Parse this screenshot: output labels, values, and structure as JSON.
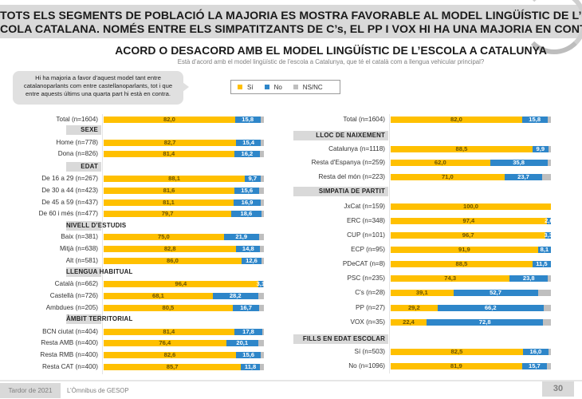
{
  "headline": {
    "line1": "TOTS ELS SEGMENTS DE POBLACIÓ LA MAJORIA ES MOSTRA FAVORABLE AL MODEL LINGÜÍSTIC DE L’ES-",
    "line2": "COLA CATALANA. NOMÉS ENTRE ELS SIMPATITZANTS DE C’s, EL PP I VOX HI HA UNA MAJORIA EN CONTRA"
  },
  "callout": {
    "line1": "Hi ha majoria a favor d’aquest model tant entre",
    "line2": "catalanoparlants com entre castellanoparlants, tot i que",
    "line3": "entre aquests últims una quarta part hi està en contra."
  },
  "footer": {
    "date": "Tardor de 2021",
    "source": "L’Òmnibus de GESOP",
    "page": "30"
  },
  "colors": {
    "yes": "#FFC000",
    "no": "#2E86C9",
    "nsnc": "#BFBFBF"
  },
  "chart_data": {
    "type": "bar",
    "stacked": true,
    "orientation": "horizontal",
    "title": "ACORD O DESACORD AMB EL MODEL LINGÜÍSTIC DE L’ESCOLA A CATALUNYA",
    "subtitle": "Està d’acord amb el model lingüístic de l’escola a Catalunya, que té el català com a llengua vehicular principal?",
    "xlim": [
      0,
      100
    ],
    "unit": "%",
    "legend": {
      "position": "top-right",
      "entries": [
        {
          "key": "yes",
          "label": "Sí"
        },
        {
          "key": "no",
          "label": "No"
        },
        {
          "key": "nsnc",
          "label": "NS/NC"
        }
      ]
    },
    "panels": [
      {
        "name": "left",
        "rows": [
          {
            "type": "row",
            "label": "Total (n=1604)",
            "yes": 82.0,
            "no": 15.8,
            "yes_label": "82,0",
            "no_label": "15,8"
          },
          {
            "type": "section",
            "label": "SEXE"
          },
          {
            "type": "row",
            "label": "Home (n=778)",
            "yes": 82.7,
            "no": 15.4,
            "yes_label": "82,7",
            "no_label": "15,4"
          },
          {
            "type": "row",
            "label": "Dona (n=826)",
            "yes": 81.4,
            "no": 16.2,
            "yes_label": "81,4",
            "no_label": "16,2"
          },
          {
            "type": "section",
            "label": "EDAT"
          },
          {
            "type": "row",
            "label": "De 16 a 29 (n=267)",
            "yes": 88.1,
            "no": 9.7,
            "yes_label": "88,1",
            "no_label": "9,7"
          },
          {
            "type": "row",
            "label": "De 30 a 44 (n=423)",
            "yes": 81.6,
            "no": 15.6,
            "yes_label": "81,6",
            "no_label": "15,6"
          },
          {
            "type": "row",
            "label": "De 45 a 59 (n=437)",
            "yes": 81.1,
            "no": 16.9,
            "yes_label": "81,1",
            "no_label": "16,9"
          },
          {
            "type": "row",
            "label": "De 60 i més (n=477)",
            "yes": 79.7,
            "no": 18.6,
            "yes_label": "79,7",
            "no_label": "18,6"
          },
          {
            "type": "section",
            "label": "NIVELL D’ESTUDIS"
          },
          {
            "type": "row",
            "label": "Baix (n=381)",
            "yes": 75.0,
            "no": 21.9,
            "yes_label": "75,0",
            "no_label": "21,9"
          },
          {
            "type": "row",
            "label": "Mitjà (n=638)",
            "yes": 82.8,
            "no": 14.8,
            "yes_label": "82,8",
            "no_label": "14,8"
          },
          {
            "type": "row",
            "label": "Alt (n=581)",
            "yes": 86.0,
            "no": 12.6,
            "yes_label": "86,0",
            "no_label": "12,6"
          },
          {
            "type": "section",
            "label": "LLENGUA HABITUAL"
          },
          {
            "type": "row",
            "label": "Català (n=662)",
            "yes": 96.4,
            "no": 3.1,
            "yes_label": "96,4",
            "no_label": "3,1"
          },
          {
            "type": "row",
            "label": "Castellà (n=726)",
            "yes": 68.1,
            "no": 28.2,
            "yes_label": "68,1",
            "no_label": "28,2"
          },
          {
            "type": "row",
            "label": "Ambdues (n=205)",
            "yes": 80.5,
            "no": 16.7,
            "yes_label": "80,5",
            "no_label": "16,7"
          },
          {
            "type": "section",
            "label": "ÀMBIT TERRITORIAL"
          },
          {
            "type": "row",
            "label": "BCN ciutat (n=404)",
            "yes": 81.4,
            "no": 17.8,
            "yes_label": "81,4",
            "no_label": "17,8"
          },
          {
            "type": "row",
            "label": "Resta AMB (n=400)",
            "yes": 76.4,
            "no": 20.1,
            "yes_label": "76,4",
            "no_label": "20,1"
          },
          {
            "type": "row",
            "label": "Resta RMB (n=400)",
            "yes": 82.6,
            "no": 15.6,
            "yes_label": "82,6",
            "no_label": "15,6"
          },
          {
            "type": "row",
            "label": "Resta CAT (n=400)",
            "yes": 85.7,
            "no": 11.8,
            "yes_label": "85,7",
            "no_label": "11,8"
          }
        ]
      },
      {
        "name": "right",
        "rows": [
          {
            "type": "row",
            "label": "Total (n=1604)",
            "yes": 82.0,
            "no": 15.8,
            "yes_label": "82,0",
            "no_label": "15,8"
          },
          {
            "type": "section",
            "label": "LLOC DE NAIXEMENT"
          },
          {
            "type": "row",
            "label": "Catalunya (n=1118)",
            "yes": 88.5,
            "no": 9.9,
            "yes_label": "88,5",
            "no_label": "9,9"
          },
          {
            "type": "row",
            "label": "Resta d'Espanya (n=259)",
            "yes": 62.0,
            "no": 35.8,
            "yes_label": "62,0",
            "no_label": "35,8"
          },
          {
            "type": "row",
            "label": "Resta del món (n=223)",
            "yes": 71.0,
            "no": 23.7,
            "yes_label": "71,0",
            "no_label": "23,7"
          },
          {
            "type": "section",
            "label": "SIMPATIA DE PARTIT"
          },
          {
            "type": "row",
            "label": "JxCat (n=159)",
            "yes": 100.0,
            "no": 0,
            "yes_label": "100,0",
            "no_label": ""
          },
          {
            "type": "row",
            "label": "ERC (n=348)",
            "yes": 97.4,
            "no": 2.6,
            "yes_label": "97,4",
            "no_label": "2,6"
          },
          {
            "type": "row",
            "label": "CUP (n=101)",
            "yes": 96.7,
            "no": 3.3,
            "yes_label": "96,7",
            "no_label": "3,3"
          },
          {
            "type": "row",
            "label": "ECP (n=95)",
            "yes": 91.9,
            "no": 8.1,
            "yes_label": "91,9",
            "no_label": "8,1"
          },
          {
            "type": "row",
            "label": "PDeCAT (n=8)",
            "yes": 88.5,
            "no": 11.5,
            "yes_label": "88,5",
            "no_label": "11,5"
          },
          {
            "type": "row",
            "label": "PSC (n=235)",
            "yes": 74.3,
            "no": 23.8,
            "yes_label": "74,3",
            "no_label": "23,8"
          },
          {
            "type": "row",
            "label": "C's (n=28)",
            "yes": 39.1,
            "no": 52.7,
            "yes_label": "39,1",
            "no_label": "52,7"
          },
          {
            "type": "row",
            "label": "PP (n=27)",
            "yes": 29.2,
            "no": 66.2,
            "yes_label": "29,2",
            "no_label": "66,2"
          },
          {
            "type": "row",
            "label": "VOX (n=35)",
            "yes": 22.4,
            "no": 72.8,
            "yes_label": "22,4",
            "no_label": "72,8"
          },
          {
            "type": "section",
            "label": "FILLS EN EDAT ESCOLAR"
          },
          {
            "type": "row",
            "label": "Sí (n=503)",
            "yes": 82.5,
            "no": 16.0,
            "yes_label": "82,5",
            "no_label": "16,0"
          },
          {
            "type": "row",
            "label": "No (n=1096)",
            "yes": 81.9,
            "no": 15.7,
            "yes_label": "81,9",
            "no_label": "15,7"
          }
        ]
      }
    ]
  }
}
